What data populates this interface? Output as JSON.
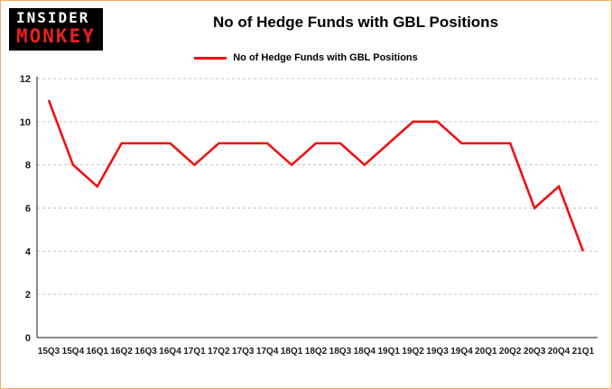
{
  "logo": {
    "line1": "INSIDER",
    "line2": "MONKEY"
  },
  "title": "No of Hedge Funds with GBL Positions",
  "legend": {
    "label": "No of Hedge Funds with GBL Positions",
    "color": "#ee1111"
  },
  "colors": {
    "line": "#ee1111",
    "grid": "#c4c4c4",
    "axis": "#1a1a1a",
    "frame_border": "#f3ae62",
    "logo_bg": "#000000",
    "logo_insider": "#ffffff",
    "logo_monkey": "#e8211d",
    "background": "#ffffff"
  },
  "chart_data": {
    "type": "line",
    "title": "No of Hedge Funds with GBL Positions",
    "categories": [
      "15Q3",
      "15Q4",
      "16Q1",
      "16Q2",
      "16Q3",
      "16Q4",
      "17Q1",
      "17Q2",
      "17Q3",
      "17Q4",
      "18Q1",
      "18Q2",
      "18Q3",
      "18Q4",
      "19Q1",
      "19Q2",
      "19Q3",
      "19Q4",
      "20Q1",
      "20Q2",
      "20Q3",
      "20Q4",
      "21Q1"
    ],
    "series": [
      {
        "name": "No of Hedge Funds with GBL Positions",
        "color": "#ee1111",
        "values": [
          11,
          8,
          7,
          9,
          9,
          9,
          8,
          9,
          9,
          9,
          8,
          9,
          9,
          8,
          9,
          10,
          10,
          9,
          9,
          9,
          6,
          7,
          4
        ]
      }
    ],
    "xlabel": "",
    "ylabel": "",
    "ylim": [
      0,
      12
    ],
    "yticks": [
      0,
      2,
      4,
      6,
      8,
      10,
      12
    ],
    "grid": "horizontal-dashed",
    "legend_position": "top-center"
  }
}
